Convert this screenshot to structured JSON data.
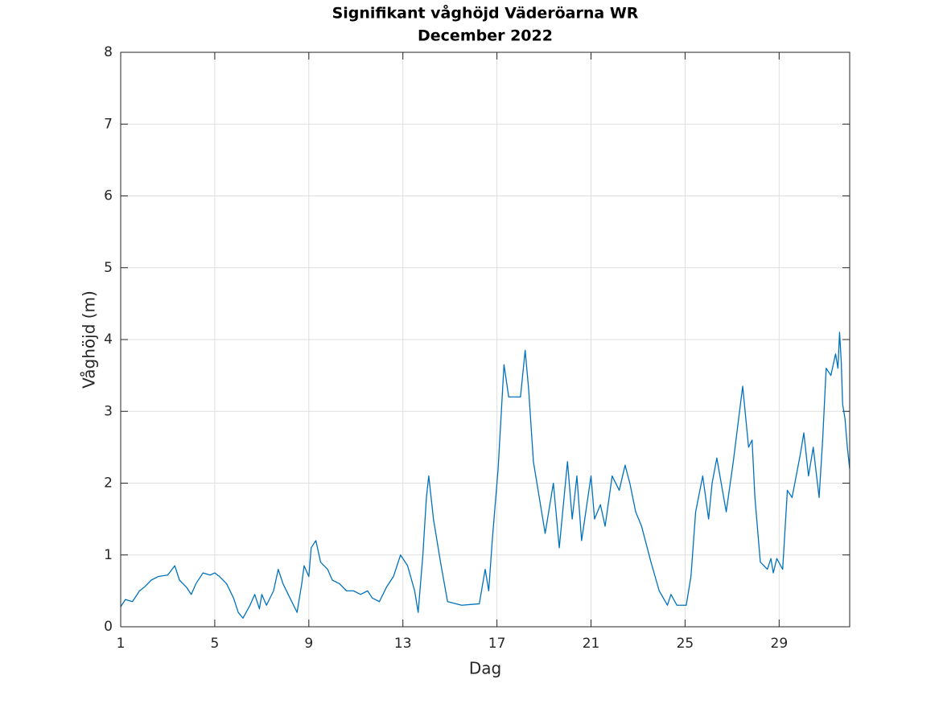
{
  "chart_data": {
    "type": "line",
    "title": "Signifikant våghöjd Väderöarna WR",
    "subtitle": "December 2022",
    "x_label": "Dag",
    "y_label": "Våghöjd (m)",
    "xlim": [
      1,
      32
    ],
    "ylim": [
      0,
      8
    ],
    "xticks": [
      1,
      5,
      9,
      13,
      17,
      21,
      25,
      29
    ],
    "yticks": [
      0,
      1,
      2,
      3,
      4,
      5,
      6,
      7,
      8
    ],
    "grid": true,
    "x": [
      1.0,
      1.2,
      1.5,
      1.8,
      2.0,
      2.3,
      2.6,
      3.0,
      3.3,
      3.5,
      3.8,
      4.0,
      4.2,
      4.5,
      4.8,
      5.0,
      5.2,
      5.5,
      5.8,
      6.0,
      6.2,
      6.5,
      6.7,
      6.9,
      7.0,
      7.2,
      7.5,
      7.7,
      7.9,
      8.2,
      8.5,
      8.7,
      8.8,
      9.0,
      9.1,
      9.3,
      9.5,
      9.8,
      10.0,
      10.3,
      10.6,
      10.9,
      11.2,
      11.5,
      11.7,
      12.0,
      12.3,
      12.6,
      12.9,
      13.2,
      13.5,
      13.65,
      13.85,
      14.0,
      14.1,
      14.3,
      14.6,
      14.9,
      15.5,
      16.25,
      16.5,
      16.65,
      16.8,
      17.05,
      17.3,
      17.5,
      17.8,
      18.0,
      18.2,
      18.35,
      18.55,
      18.9,
      19.05,
      19.4,
      19.65,
      20.0,
      20.2,
      20.4,
      20.6,
      21.0,
      21.15,
      21.4,
      21.6,
      21.9,
      22.2,
      22.45,
      22.65,
      22.9,
      23.15,
      23.55,
      23.9,
      24.25,
      24.4,
      24.65,
      25.05,
      25.25,
      25.45,
      25.75,
      26.0,
      26.15,
      26.35,
      26.75,
      27.05,
      27.45,
      27.7,
      27.85,
      27.97,
      28.2,
      28.5,
      28.65,
      28.75,
      28.9,
      29.15,
      29.35,
      29.55,
      29.9,
      30.05,
      30.25,
      30.45,
      30.7,
      30.85,
      31.0,
      31.2,
      31.4,
      31.5,
      31.57,
      31.64,
      31.7,
      31.8,
      31.9,
      32.0
    ],
    "series": [
      {
        "name": "Våghöjd",
        "color": "#0072bd",
        "values": [
          0.28,
          0.38,
          0.35,
          0.5,
          0.55,
          0.65,
          0.7,
          0.72,
          0.85,
          0.65,
          0.55,
          0.45,
          0.6,
          0.75,
          0.72,
          0.75,
          0.7,
          0.6,
          0.4,
          0.2,
          0.12,
          0.3,
          0.45,
          0.25,
          0.45,
          0.3,
          0.5,
          0.8,
          0.6,
          0.4,
          0.2,
          0.6,
          0.85,
          0.7,
          1.1,
          1.2,
          0.9,
          0.8,
          0.65,
          0.6,
          0.5,
          0.5,
          0.45,
          0.5,
          0.4,
          0.35,
          0.55,
          0.7,
          1.0,
          0.85,
          0.5,
          0.2,
          1.0,
          1.8,
          2.1,
          1.5,
          0.9,
          0.35,
          0.3,
          0.32,
          0.8,
          0.5,
          1.2,
          2.2,
          3.65,
          3.2,
          3.2,
          3.2,
          3.85,
          3.3,
          2.3,
          1.6,
          1.3,
          2.0,
          1.1,
          2.3,
          1.5,
          2.1,
          1.2,
          2.1,
          1.5,
          1.7,
          1.4,
          2.1,
          1.9,
          2.25,
          2.0,
          1.6,
          1.4,
          0.9,
          0.5,
          0.3,
          0.45,
          0.3,
          0.3,
          0.7,
          1.6,
          2.1,
          1.5,
          2.0,
          2.35,
          1.6,
          2.3,
          3.35,
          2.5,
          2.6,
          1.8,
          0.9,
          0.8,
          0.95,
          0.75,
          0.95,
          0.8,
          1.9,
          1.8,
          2.4,
          2.7,
          2.1,
          2.5,
          1.8,
          2.6,
          3.6,
          3.5,
          3.8,
          3.6,
          4.1,
          3.7,
          3.1,
          2.9,
          2.5,
          2.2
        ]
      }
    ]
  }
}
